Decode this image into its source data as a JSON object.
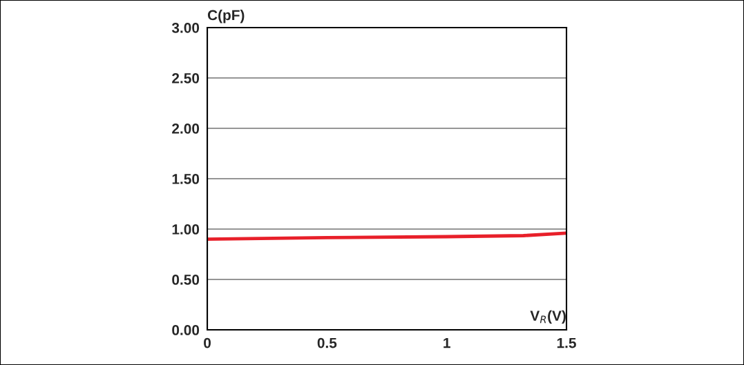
{
  "chart_data": {
    "type": "line",
    "xlabel": "V$_{R}$(V)",
    "ylabel": "C(pF)",
    "series": [
      {
        "color": "#e8202a",
        "x": [
          0,
          0.5,
          1.0,
          1.32,
          1.5
        ],
        "values": [
          0.9,
          0.915,
          0.925,
          0.935,
          0.96
        ]
      }
    ],
    "xlim": [
      0,
      1.5
    ],
    "xticks": [
      0,
      0.5,
      1,
      1.5
    ],
    "ylim": [
      0,
      3
    ],
    "yticks": [
      {
        "value": 0,
        "label": "0.00"
      },
      {
        "value": 0.5,
        "label": "0.50"
      },
      {
        "value": 1,
        "label": "1.00"
      },
      {
        "value": 1.5,
        "label": "1.50"
      },
      {
        "value": 2,
        "label": "2.00"
      },
      {
        "value": 2.5,
        "label": "2.50"
      },
      {
        "value": 3,
        "label": "3.00"
      }
    ],
    "grid": "y",
    "line_style": "solid",
    "marker": "none"
  }
}
